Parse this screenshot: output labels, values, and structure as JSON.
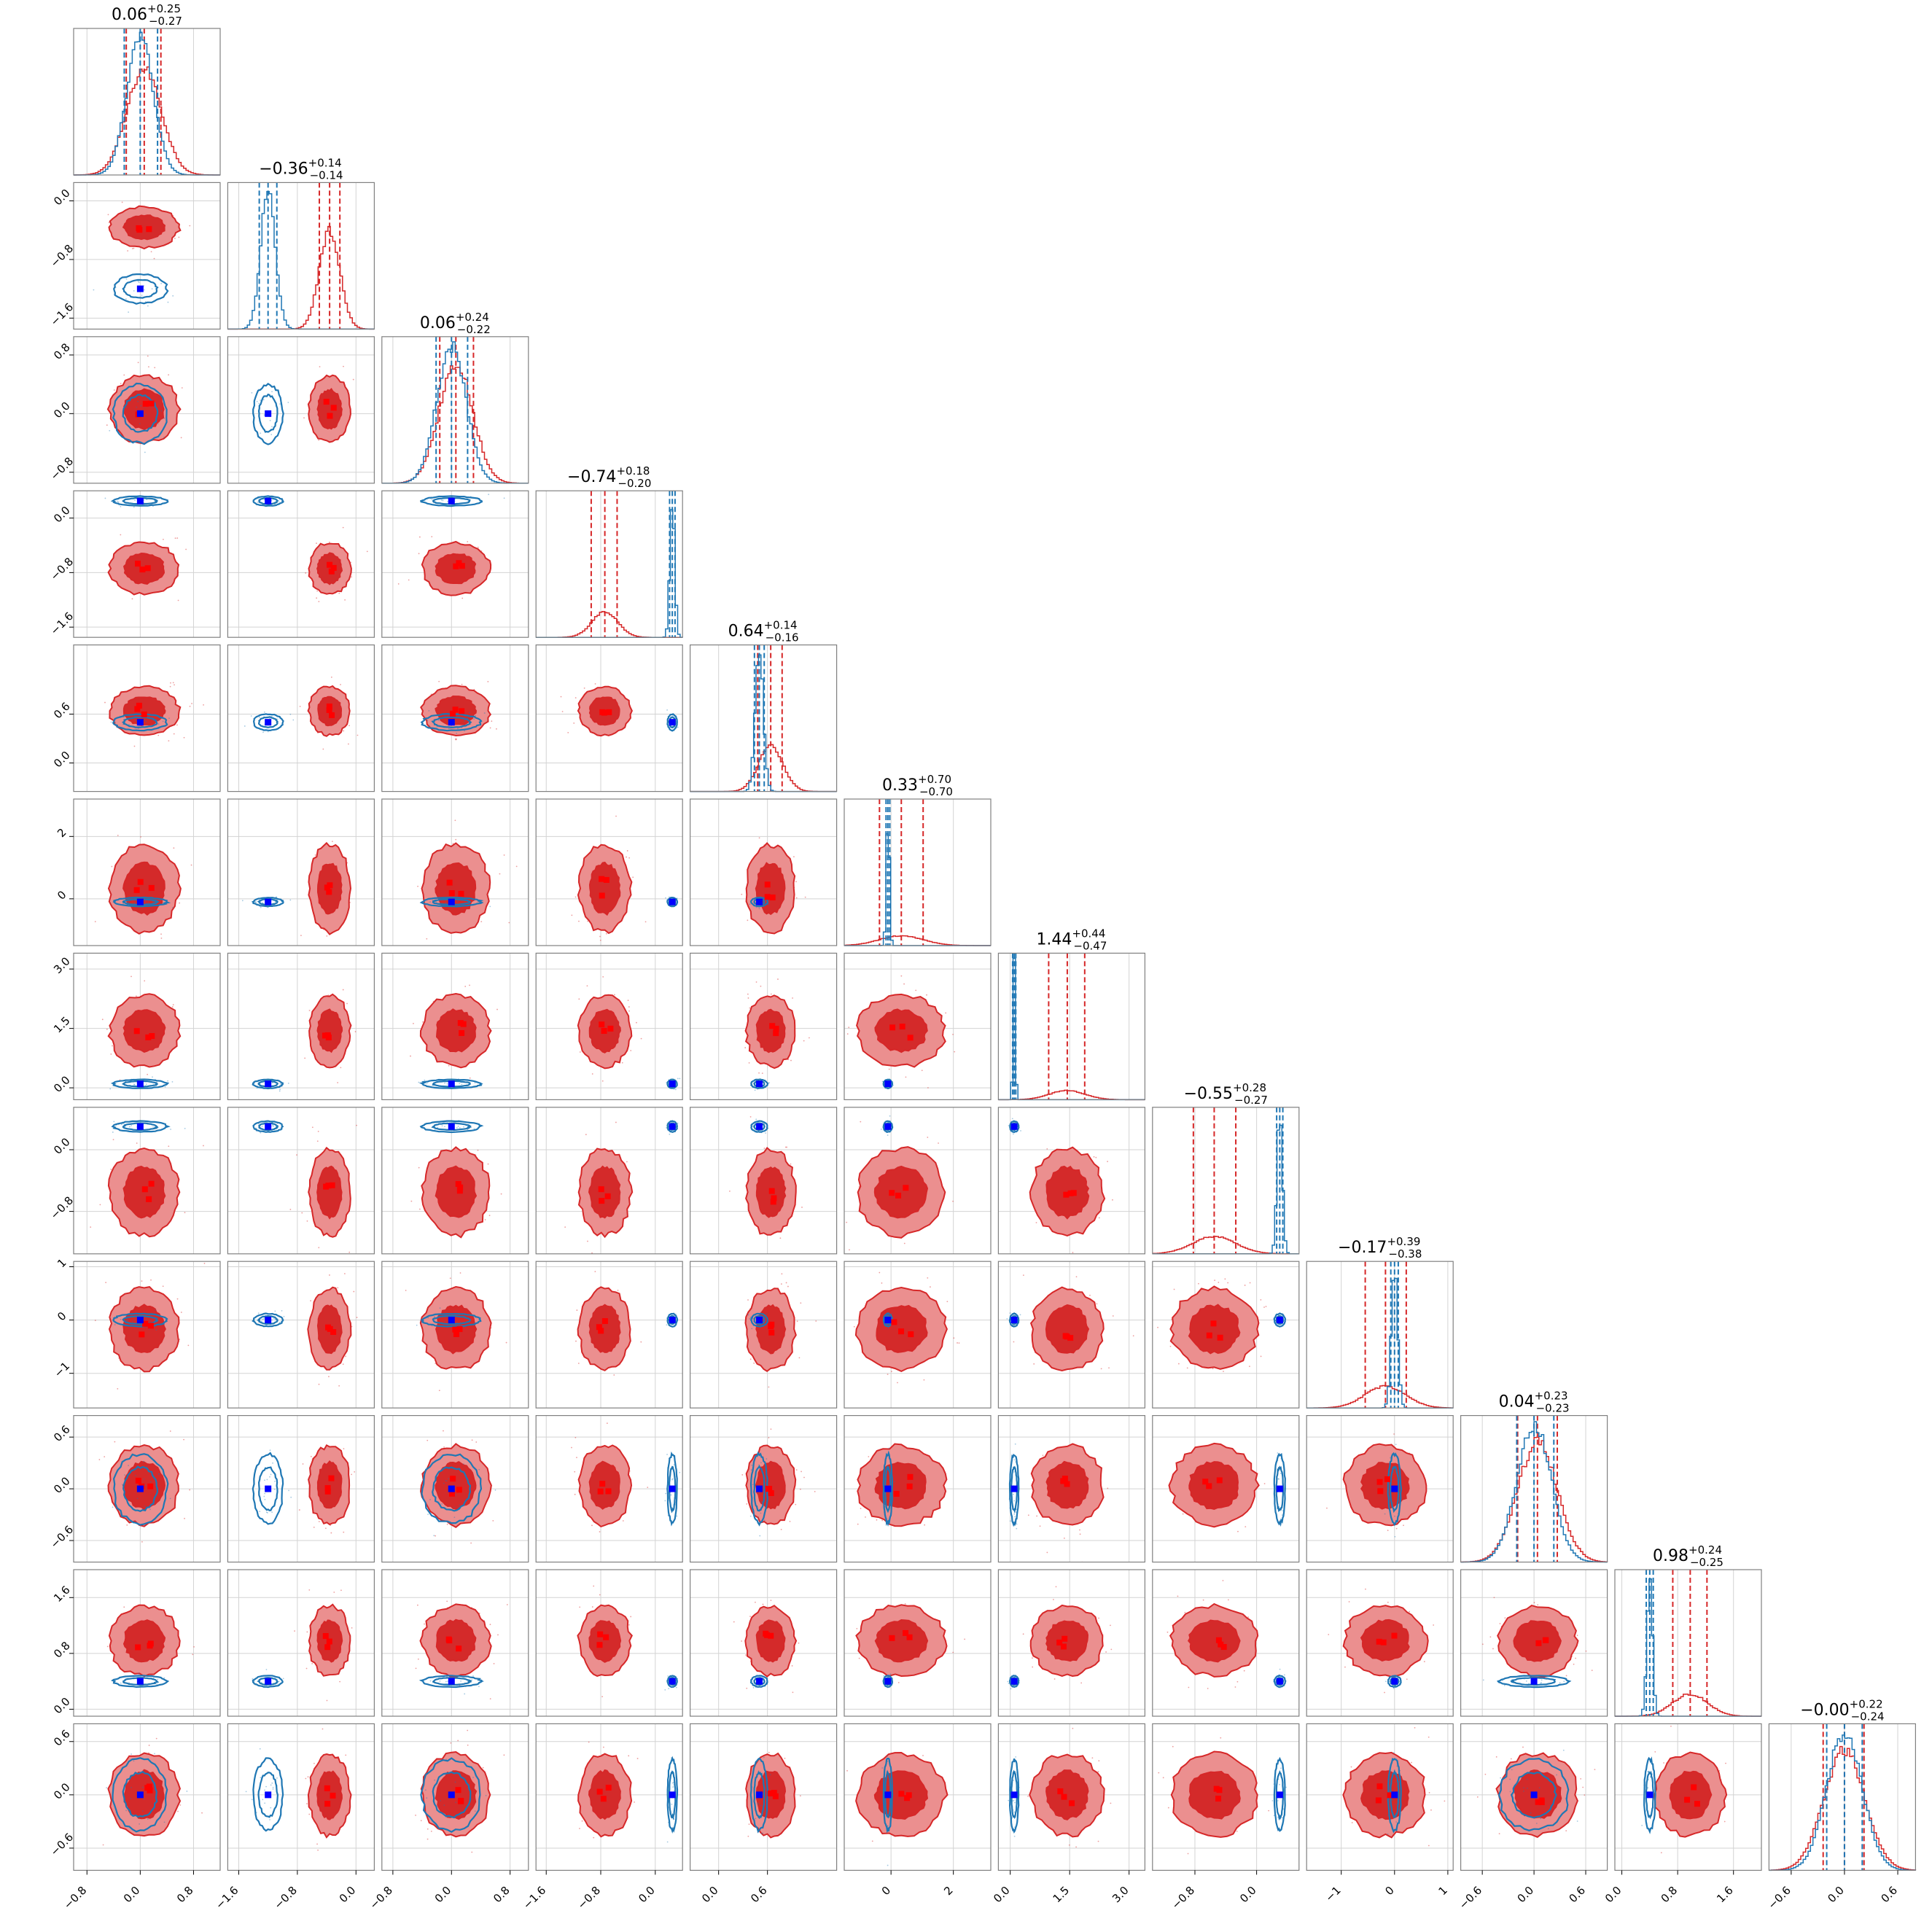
{
  "chart_data": {
    "type": "corner",
    "n_params": 12,
    "titles": [
      {
        "median": "0.06",
        "plus": "+0.25",
        "minus": "−0.27"
      },
      {
        "median": "−0.36",
        "plus": "+0.14",
        "minus": "−0.14"
      },
      {
        "median": "0.06",
        "plus": "+0.24",
        "minus": "−0.22"
      },
      {
        "median": "−0.74",
        "plus": "+0.18",
        "minus": "−0.20"
      },
      {
        "median": "0.64",
        "plus": "+0.14",
        "minus": "−0.16"
      },
      {
        "median": "0.33",
        "plus": "+0.70",
        "minus": "−0.70"
      },
      {
        "median": "1.44",
        "plus": "+0.44",
        "minus": "−0.47"
      },
      {
        "median": "−0.55",
        "plus": "+0.28",
        "minus": "−0.27"
      },
      {
        "median": "−0.17",
        "plus": "+0.39",
        "minus": "−0.38"
      },
      {
        "median": "0.04",
        "plus": "+0.23",
        "minus": "−0.23"
      },
      {
        "median": "0.98",
        "plus": "+0.24",
        "minus": "−0.25"
      },
      {
        "median": "−0.00",
        "plus": "+0.22",
        "minus": "−0.24"
      }
    ],
    "params": [
      {
        "range": [
          -1.0,
          1.2
        ],
        "ticks": [
          -0.8,
          0.0,
          0.8
        ],
        "labels": [
          "−0.8",
          "0.0",
          "0.8"
        ],
        "red": {
          "mean": 0.06,
          "sd": 0.26,
          "q": [
            -0.21,
            0.31
          ]
        },
        "blue": {
          "mean": 0.0,
          "sd": 0.2,
          "q": [
            -0.24,
            0.26
          ]
        },
        "truth": 0.0
      },
      {
        "range": [
          -1.75,
          0.25
        ],
        "ticks": [
          -1.6,
          -0.8,
          0.0
        ],
        "labels": [
          "−1.6",
          "−0.8",
          "0.0"
        ],
        "red": {
          "mean": -0.36,
          "sd": 0.14,
          "q": [
            -0.5,
            -0.22
          ]
        },
        "blue": {
          "mean": -1.2,
          "sd": 0.1,
          "q": [
            -1.32,
            -1.08
          ]
        },
        "truth": -1.2
      },
      {
        "range": [
          -0.95,
          1.05
        ],
        "ticks": [
          -0.8,
          0.0,
          0.8
        ],
        "labels": [
          "−0.8",
          "0.0",
          "0.8"
        ],
        "red": {
          "mean": 0.06,
          "sd": 0.23,
          "q": [
            -0.16,
            0.3
          ]
        },
        "blue": {
          "mean": 0.0,
          "sd": 0.2,
          "q": [
            -0.21,
            0.22
          ]
        },
        "truth": 0.0
      },
      {
        "range": [
          -1.75,
          0.4
        ],
        "ticks": [
          -1.6,
          -0.8,
          0.0
        ],
        "labels": [
          "−1.6",
          "−0.8",
          "0.0"
        ],
        "red": {
          "mean": -0.74,
          "sd": 0.19,
          "q": [
            -0.94,
            -0.56
          ]
        },
        "blue": {
          "mean": 0.25,
          "sd": 0.035,
          "q": [
            0.21,
            0.29
          ]
        },
        "truth": 0.25
      },
      {
        "range": [
          -0.35,
          1.45
        ],
        "ticks": [
          0.0,
          0.6
        ],
        "labels": [
          "0.0",
          "0.6"
        ],
        "red": {
          "mean": 0.64,
          "sd": 0.15,
          "q": [
            0.48,
            0.78
          ]
        },
        "blue": {
          "mean": 0.5,
          "sd": 0.05,
          "q": [
            0.44,
            0.56
          ]
        },
        "truth": 0.5
      },
      {
        "range": [
          -1.5,
          3.2
        ],
        "ticks": [
          0,
          2
        ],
        "labels": [
          "0",
          "2"
        ],
        "red": {
          "mean": 0.33,
          "sd": 0.7,
          "q": [
            -0.37,
            1.03
          ]
        },
        "blue": {
          "mean": -0.1,
          "sd": 0.05,
          "q": [
            -0.16,
            -0.04
          ]
        },
        "truth": -0.1
      },
      {
        "range": [
          -0.3,
          3.4
        ],
        "ticks": [
          0.0,
          1.5,
          3.0
        ],
        "labels": [
          "0.0",
          "1.5",
          "3.0"
        ],
        "red": {
          "mean": 1.44,
          "sd": 0.45,
          "q": [
            0.97,
            1.88
          ]
        },
        "blue": {
          "mean": 0.1,
          "sd": 0.03,
          "q": [
            0.06,
            0.14
          ]
        },
        "truth": 0.1
      },
      {
        "range": [
          -1.35,
          0.55
        ],
        "ticks": [
          -0.8,
          0.0
        ],
        "labels": [
          "−0.8",
          "0.0"
        ],
        "red": {
          "mean": -0.55,
          "sd": 0.28,
          "q": [
            -0.82,
            -0.27
          ]
        },
        "blue": {
          "mean": 0.3,
          "sd": 0.035,
          "q": [
            0.26,
            0.34
          ]
        },
        "truth": 0.3
      },
      {
        "range": [
          -1.65,
          1.1
        ],
        "ticks": [
          -1,
          0,
          1
        ],
        "labels": [
          "−1",
          "0",
          "1"
        ],
        "red": {
          "mean": -0.17,
          "sd": 0.38,
          "q": [
            -0.55,
            0.22
          ]
        },
        "blue": {
          "mean": 0.0,
          "sd": 0.06,
          "q": [
            -0.07,
            0.07
          ]
        },
        "truth": 0.0
      },
      {
        "range": [
          -0.85,
          0.85
        ],
        "ticks": [
          -0.6,
          0.0,
          0.6
        ],
        "labels": [
          "−0.6",
          "0.0",
          "0.6"
        ],
        "red": {
          "mean": 0.04,
          "sd": 0.23,
          "q": [
            -0.19,
            0.27
          ]
        },
        "blue": {
          "mean": 0.0,
          "sd": 0.2,
          "q": [
            -0.2,
            0.23
          ]
        },
        "truth": 0.0
      },
      {
        "range": [
          -0.1,
          2.0
        ],
        "ticks": [
          0.0,
          0.8,
          1.6
        ],
        "labels": [
          "0.0",
          "0.8",
          "1.6"
        ],
        "red": {
          "mean": 0.98,
          "sd": 0.25,
          "q": [
            0.73,
            1.22
          ]
        },
        "blue": {
          "mean": 0.4,
          "sd": 0.04,
          "q": [
            0.35,
            0.45
          ]
        },
        "truth": 0.4
      },
      {
        "range": [
          -0.85,
          0.8
        ],
        "ticks": [
          -0.6,
          0.0,
          0.6
        ],
        "labels": [
          "−0.6",
          "0.0",
          "0.6"
        ],
        "red": {
          "mean": 0.0,
          "sd": 0.23,
          "q": [
            -0.24,
            0.22
          ]
        },
        "blue": {
          "mean": 0.0,
          "sd": 0.2,
          "q": [
            -0.2,
            0.2
          ]
        },
        "truth": 0.0
      }
    ],
    "colors": {
      "red_line": "#d62728",
      "red_dark": "#d42a2a",
      "red_light": "#eb8f8f",
      "blue_line": "#1f77b4",
      "truth_marker": "#0000ff",
      "red_marker": "#ff0000",
      "grid": "#d3d3d3",
      "frame": "#808080"
    }
  }
}
